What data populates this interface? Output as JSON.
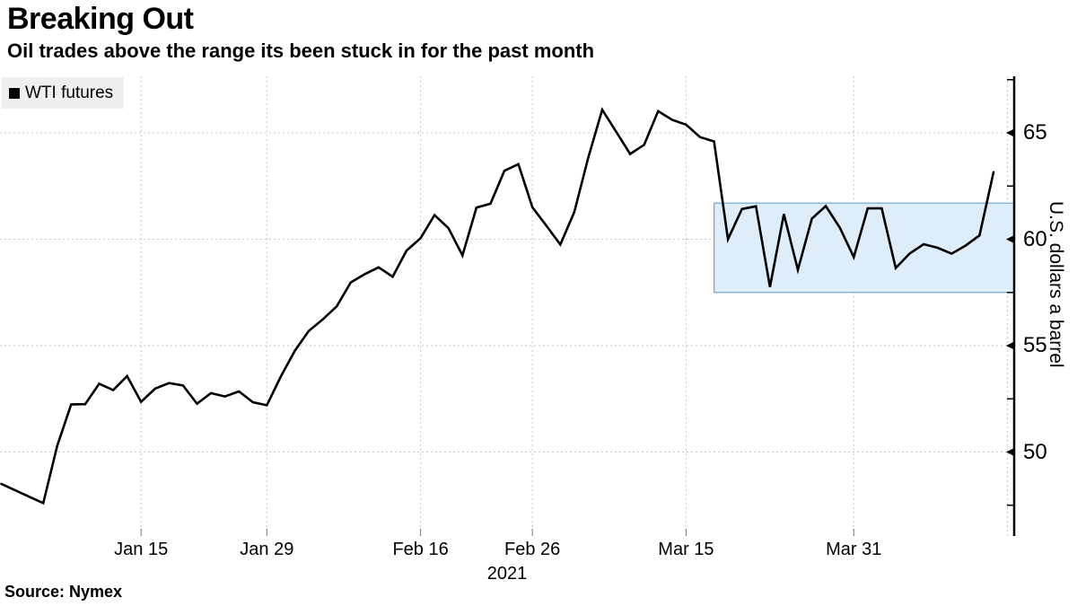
{
  "header": {
    "title": "Breaking Out",
    "subtitle": "Oil trades above the range its been stuck in for the past month"
  },
  "legend": {
    "label": "WTI futures",
    "marker_color": "#000000"
  },
  "source": {
    "label": "Source: Nymex"
  },
  "colors": {
    "line": "#000000",
    "grid": "#c6c6c6",
    "axis": "#000000",
    "band_fill": "#ddedf9",
    "band_stroke": "#6fa8d6",
    "legend_bg": "#efefef"
  },
  "chart_data": {
    "type": "line",
    "title": "Breaking Out",
    "subtitle": "Oil trades above the range its been stuck in for the past month",
    "ylabel": "U.S. dollars a barrel",
    "xlabel": "2021",
    "legend_position": "top-left",
    "grid": true,
    "ylim": [
      46.1,
      67.7
    ],
    "y_major_ticks": [
      50,
      55,
      60,
      65
    ],
    "y_minor_ticks": [
      47.5,
      52.5,
      57.5,
      62.5,
      67.5
    ],
    "x_ticks": [
      {
        "label": "Jan 15",
        "index": 10
      },
      {
        "label": "Jan 29",
        "index": 19
      },
      {
        "label": "Feb 16",
        "index": 30
      },
      {
        "label": "Feb 26",
        "index": 38
      },
      {
        "label": "Mar 15",
        "index": 49
      },
      {
        "label": "Mar 31",
        "index": 61
      }
    ],
    "extra_gridline_index": 72,
    "year_label": "2021",
    "highlight_band": {
      "from": 57.5,
      "to": 61.7,
      "start_index": 51
    },
    "series": [
      {
        "name": "WTI futures",
        "unit": "U.S. dollars a barrel",
        "dates": [
          "Dec 31",
          "Jan 4",
          "Jan 5",
          "Jan 6",
          "Jan 7",
          "Jan 8",
          "Jan 11",
          "Jan 12",
          "Jan 13",
          "Jan 14",
          "Jan 15",
          "Jan 19",
          "Jan 20",
          "Jan 21",
          "Jan 22",
          "Jan 25",
          "Jan 26",
          "Jan 27",
          "Jan 28",
          "Jan 29",
          "Feb 1",
          "Feb 2",
          "Feb 3",
          "Feb 4",
          "Feb 5",
          "Feb 8",
          "Feb 9",
          "Feb 10",
          "Feb 11",
          "Feb 12",
          "Feb 16",
          "Feb 17",
          "Feb 18",
          "Feb 19",
          "Feb 22",
          "Feb 23",
          "Feb 24",
          "Feb 25",
          "Feb 26",
          "Mar 1",
          "Mar 2",
          "Mar 3",
          "Mar 4",
          "Mar 5",
          "Mar 8",
          "Mar 9",
          "Mar 10",
          "Mar 11",
          "Mar 12",
          "Mar 15",
          "Mar 16",
          "Mar 17",
          "Mar 18",
          "Mar 19",
          "Mar 22",
          "Mar 23",
          "Mar 24",
          "Mar 25",
          "Mar 26",
          "Mar 29",
          "Mar 30",
          "Mar 31",
          "Apr 1",
          "Apr 2",
          "Apr 5",
          "Apr 6",
          "Apr 7",
          "Apr 8",
          "Apr 9",
          "Apr 12",
          "Apr 13",
          "Apr 14"
        ],
        "values": [
          48.5,
          48.2,
          47.9,
          47.6,
          50.3,
          52.24,
          52.25,
          53.21,
          52.91,
          53.57,
          52.36,
          52.98,
          53.24,
          53.13,
          52.27,
          52.77,
          52.61,
          52.85,
          52.34,
          52.2,
          53.55,
          54.76,
          55.69,
          56.23,
          56.85,
          57.97,
          58.36,
          58.68,
          58.24,
          59.47,
          60.05,
          61.14,
          60.52,
          59.24,
          61.49,
          61.67,
          63.22,
          63.53,
          61.5,
          60.64,
          59.75,
          61.28,
          63.83,
          66.09,
          65.05,
          64.01,
          64.44,
          66.02,
          65.61,
          65.39,
          64.8,
          64.6,
          60.0,
          61.42,
          61.55,
          57.76,
          61.18,
          58.56,
          60.97,
          61.56,
          60.55,
          59.16,
          61.45,
          61.45,
          58.65,
          59.33,
          59.77,
          59.6,
          59.32,
          59.7,
          60.18,
          63.15
        ]
      }
    ]
  }
}
